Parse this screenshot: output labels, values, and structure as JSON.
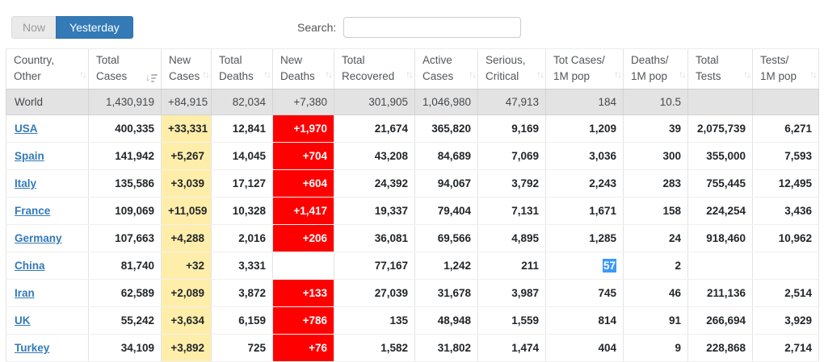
{
  "toolbar": {
    "now_label": "Now",
    "yesterday_label": "Yesterday",
    "active_button": "Yesterday",
    "search_label": "Search:",
    "search_value": ""
  },
  "colors": {
    "accent_blue": "#337ab7",
    "link_blue": "#337ab7",
    "new_cases_bg": "#FFEEAA",
    "new_deaths_bg": "#FF0000",
    "selection_bg": "#3B99FC",
    "world_row_bg": "#e3e3e3"
  },
  "table": {
    "columns": [
      {
        "id": "country",
        "label_lines": [
          "Country,",
          "Other"
        ],
        "sort": "both"
      },
      {
        "id": "total_cases",
        "label_lines": [
          "Total",
          "Cases"
        ],
        "sort": "desc"
      },
      {
        "id": "new_cases",
        "label_lines": [
          "New",
          "Cases"
        ],
        "sort": "both"
      },
      {
        "id": "total_deaths",
        "label_lines": [
          "Total",
          "Deaths"
        ],
        "sort": "both"
      },
      {
        "id": "new_deaths",
        "label_lines": [
          "New",
          "Deaths"
        ],
        "sort": "both"
      },
      {
        "id": "total_recovered",
        "label_lines": [
          "Total",
          "Recovered"
        ],
        "sort": "both"
      },
      {
        "id": "active_cases",
        "label_lines": [
          "Active",
          "Cases"
        ],
        "sort": "both"
      },
      {
        "id": "serious_critical",
        "label_lines": [
          "Serious,",
          "Critical"
        ],
        "sort": "both"
      },
      {
        "id": "tot_cases_1m",
        "label_lines": [
          "Tot Cases/",
          "1M pop"
        ],
        "sort": "both"
      },
      {
        "id": "deaths_1m",
        "label_lines": [
          "Deaths/",
          "1M pop"
        ],
        "sort": "both"
      },
      {
        "id": "total_tests",
        "label_lines": [
          "Total",
          "Tests"
        ],
        "sort": "both"
      },
      {
        "id": "tests_1m",
        "label_lines": [
          "Tests/",
          "1M pop"
        ],
        "sort": "both"
      }
    ],
    "world_row": {
      "name": "World",
      "values": [
        "1,430,919",
        "+84,915",
        "82,034",
        "+7,380",
        "301,905",
        "1,046,980",
        "47,913",
        "184",
        "10.5",
        "",
        ""
      ]
    },
    "rows": [
      {
        "country": "USA",
        "values": [
          "400,335",
          "+33,331",
          "12,841",
          "+1,970",
          "21,674",
          "365,820",
          "9,169",
          "1,209",
          "39",
          "2,075,739",
          "6,271"
        ]
      },
      {
        "country": "Spain",
        "values": [
          "141,942",
          "+5,267",
          "14,045",
          "+704",
          "43,208",
          "84,689",
          "7,069",
          "3,036",
          "300",
          "355,000",
          "7,593"
        ]
      },
      {
        "country": "Italy",
        "values": [
          "135,586",
          "+3,039",
          "17,127",
          "+604",
          "24,392",
          "94,067",
          "3,792",
          "2,243",
          "283",
          "755,445",
          "12,495"
        ]
      },
      {
        "country": "France",
        "values": [
          "109,069",
          "+11,059",
          "10,328",
          "+1,417",
          "19,337",
          "79,404",
          "7,131",
          "1,671",
          "158",
          "224,254",
          "3,436"
        ]
      },
      {
        "country": "Germany",
        "values": [
          "107,663",
          "+4,288",
          "2,016",
          "+206",
          "36,081",
          "69,566",
          "4,895",
          "1,285",
          "24",
          "918,460",
          "10,962"
        ]
      },
      {
        "country": "China",
        "values": [
          "81,740",
          "+32",
          "3,331",
          "",
          "77,167",
          "1,242",
          "211",
          "57",
          "2",
          "",
          ""
        ],
        "selected_value_index": 7
      },
      {
        "country": "Iran",
        "values": [
          "62,589",
          "+2,089",
          "3,872",
          "+133",
          "27,039",
          "31,678",
          "3,987",
          "745",
          "46",
          "211,136",
          "2,514"
        ]
      },
      {
        "country": "UK",
        "values": [
          "55,242",
          "+3,634",
          "6,159",
          "+786",
          "135",
          "48,948",
          "1,559",
          "814",
          "91",
          "266,694",
          "3,929"
        ]
      },
      {
        "country": "Turkey",
        "values": [
          "34,109",
          "+3,892",
          "725",
          "+76",
          "1,582",
          "31,802",
          "1,474",
          "404",
          "9",
          "228,868",
          "2,714"
        ]
      }
    ]
  }
}
